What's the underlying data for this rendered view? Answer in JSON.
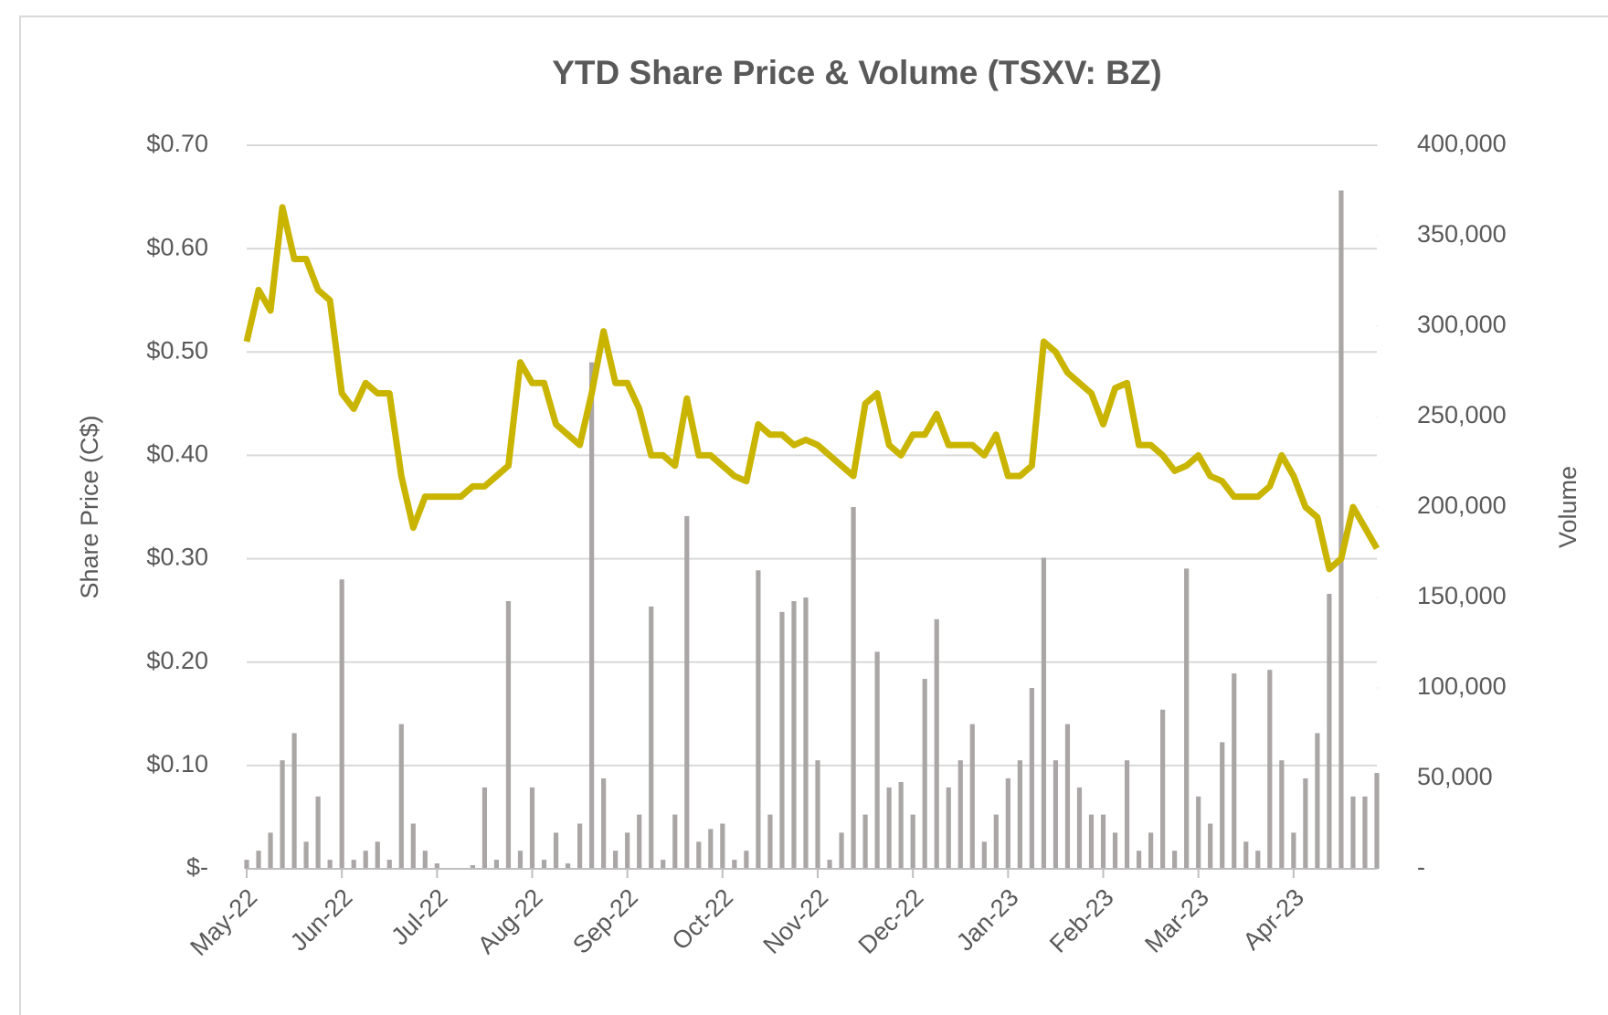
{
  "chart_data": {
    "type": "bar-line",
    "title": "YTD Share Price & Volume (TSXV: BZ)",
    "y_label": "Share Price (C$)",
    "y2_label": "Volume",
    "categories": [
      "May-22",
      null,
      null,
      null,
      null,
      null,
      null,
      null,
      "Jun-22",
      null,
      null,
      null,
      null,
      null,
      null,
      null,
      "Jul-22",
      null,
      null,
      null,
      null,
      null,
      null,
      null,
      "Aug-22",
      null,
      null,
      null,
      null,
      null,
      null,
      null,
      "Sep-22",
      null,
      null,
      null,
      null,
      null,
      null,
      null,
      "Oct-22",
      null,
      null,
      null,
      null,
      null,
      null,
      null,
      "Nov-22",
      null,
      null,
      null,
      null,
      null,
      null,
      null,
      "Dec-22",
      null,
      null,
      null,
      null,
      null,
      null,
      null,
      "Jan-23",
      null,
      null,
      null,
      null,
      null,
      null,
      null,
      "Feb-23",
      null,
      null,
      null,
      null,
      null,
      null,
      null,
      "Mar-23",
      null,
      null,
      null,
      null,
      null,
      null,
      null,
      "Apr-23",
      null,
      null,
      null,
      null,
      null,
      null,
      null
    ],
    "series": [
      {
        "type": "bar",
        "axis": "y2",
        "color": "#aaa6a6",
        "values": [
          5000,
          10000,
          20000,
          60000,
          75000,
          15000,
          40000,
          5000,
          160000,
          5000,
          10000,
          15000,
          5000,
          80000,
          25000,
          10000,
          3000,
          0,
          0,
          2000,
          45000,
          5000,
          148000,
          10000,
          45000,
          5000,
          20000,
          3000,
          25000,
          280000,
          50000,
          10000,
          20000,
          30000,
          145000,
          5000,
          30000,
          195000,
          15000,
          22000,
          25000,
          5000,
          10000,
          165000,
          30000,
          142000,
          148000,
          150000,
          60000,
          5000,
          20000,
          200000,
          30000,
          120000,
          45000,
          48000,
          30000,
          105000,
          138000,
          45000,
          60000,
          80000,
          15000,
          30000,
          50000,
          60000,
          100000,
          172000,
          60000,
          80000,
          45000,
          30000,
          30000,
          20000,
          60000,
          10000,
          20000,
          88000,
          10000,
          166000,
          40000,
          25000,
          70000,
          108000,
          15000,
          10000,
          110000,
          60000,
          20000,
          50000,
          75000,
          152000,
          375000,
          40000,
          40000,
          53000
        ]
      },
      {
        "type": "line",
        "axis": "y",
        "color": "#c9b500",
        "values": [
          0.51,
          0.56,
          0.54,
          0.64,
          0.59,
          0.59,
          0.56,
          0.55,
          0.46,
          0.445,
          0.47,
          0.46,
          0.46,
          0.38,
          0.33,
          0.36,
          0.36,
          0.36,
          0.36,
          0.37,
          0.37,
          0.38,
          0.39,
          0.49,
          0.47,
          0.47,
          0.43,
          0.42,
          0.41,
          0.46,
          0.52,
          0.47,
          0.47,
          0.445,
          0.4,
          0.4,
          0.39,
          0.455,
          0.4,
          0.4,
          0.39,
          0.38,
          0.375,
          0.43,
          0.42,
          0.42,
          0.41,
          0.415,
          0.41,
          0.4,
          0.39,
          0.38,
          0.45,
          0.46,
          0.41,
          0.4,
          0.42,
          0.42,
          0.44,
          0.41,
          0.41,
          0.41,
          0.4,
          0.42,
          0.38,
          0.38,
          0.39,
          0.51,
          0.5,
          0.48,
          0.47,
          0.46,
          0.43,
          0.465,
          0.47,
          0.41,
          0.41,
          0.4,
          0.385,
          0.39,
          0.4,
          0.38,
          0.375,
          0.36,
          0.36,
          0.36,
          0.37,
          0.4,
          0.38,
          0.35,
          0.34,
          0.29,
          0.3,
          0.35,
          0.33,
          0.31
        ]
      }
    ],
    "ylim": [
      0,
      0.7
    ],
    "yticks": [
      {
        "value": 0,
        "label": "$-"
      },
      {
        "value": 0.1,
        "label": "$0.10"
      },
      {
        "value": 0.2,
        "label": "$0.20"
      },
      {
        "value": 0.3,
        "label": "$0.30"
      },
      {
        "value": 0.4,
        "label": "$0.40"
      },
      {
        "value": 0.5,
        "label": "$0.50"
      },
      {
        "value": 0.6,
        "label": "$0.60"
      },
      {
        "value": 0.7,
        "label": "$0.70"
      }
    ],
    "y2lim": [
      0,
      400000
    ],
    "y2ticks": [
      {
        "value": 0,
        "label": "-"
      },
      {
        "value": 50000,
        "label": "50,000"
      },
      {
        "value": 100000,
        "label": "100,000"
      },
      {
        "value": 150000,
        "label": "150,000"
      },
      {
        "value": 200000,
        "label": "200,000"
      },
      {
        "value": 250000,
        "label": "250,000"
      },
      {
        "value": 300000,
        "label": "300,000"
      },
      {
        "value": 350000,
        "label": "350,000"
      },
      {
        "value": 400000,
        "label": "400,000"
      }
    ],
    "grid": true
  }
}
